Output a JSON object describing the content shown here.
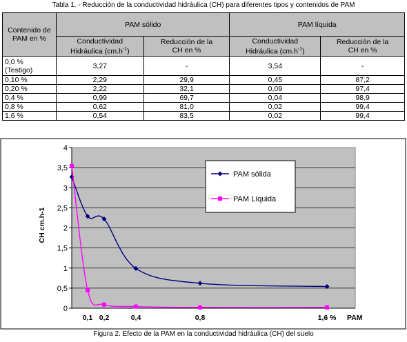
{
  "table": {
    "caption": "Tabla 1. - Reducción de la conductividad hidráulica (CH) para diferentes tipos y contenidos de PAM",
    "rowheader_line1": "Contenido de",
    "rowheader_line2": "PAM en %",
    "group_solid": "PAM sólido",
    "group_liquid": "PAM líquida",
    "col_ch_line1": "Conductividad",
    "col_ch_line2": "Hidráulica (cm.h",
    "col_ch_sup": "-1",
    "col_ch_close": ")",
    "col_red_line1": "Reducción de la",
    "col_red_line2": "CH en %",
    "rows": [
      {
        "label1": "0,0 %",
        "label2": "(Testigo)",
        "ch_s": "3,27",
        "red_s": "-",
        "ch_l": "3,54",
        "red_l": "-"
      },
      {
        "label1": "0,10 %",
        "label2": "",
        "ch_s": "2,29",
        "red_s": "29,9",
        "ch_l": "0,45",
        "red_l": "87,2"
      },
      {
        "label1": "0,20 %",
        "label2": "",
        "ch_s": "2,22",
        "red_s": "32,1",
        "ch_l": "0,09",
        "red_l": "97,4"
      },
      {
        "label1": "0,4 %",
        "label2": "",
        "ch_s": "0,99",
        "red_s": "69,7",
        "ch_l": "0,04",
        "red_l": "98,9"
      },
      {
        "label1": "0,8 %",
        "label2": "",
        "ch_s": "0,62",
        "red_s": "81,0",
        "ch_l": "0,02",
        "red_l": "99,4"
      },
      {
        "label1": "1,6 %",
        "label2": "",
        "ch_s": "0,54",
        "red_s": "83,5",
        "ch_l": "0,02",
        "red_l": "99,4"
      }
    ]
  },
  "chart_data": {
    "type": "line",
    "title": "",
    "xlabel": "PAM",
    "ylabel": "CH   cm.h-1",
    "x": [
      0,
      0.1,
      0.2,
      0.4,
      0.8,
      1.6
    ],
    "x_tick_labels": [
      "0,1",
      "0,2",
      "0,4",
      "0,8",
      "1,6 %"
    ],
    "y_ticks": [
      "0",
      "0,5",
      "1",
      "1,5",
      "2",
      "2,5",
      "3",
      "3,5",
      "4"
    ],
    "ylim": [
      0,
      4
    ],
    "xlim": [
      0,
      1.8
    ],
    "x_axis_scale": "compressed: 0.2 to 0.4 spans less than 0.0 to 0.2, as in the original",
    "grid": "horizontal gridlines",
    "legend_position": "upper-right inside plot",
    "plot_background": "#c0c0c0",
    "series": [
      {
        "name": "PAM sólida",
        "color": "#000080",
        "marker": "diamond",
        "values": [
          3.27,
          2.29,
          2.22,
          0.99,
          0.62,
          0.54
        ]
      },
      {
        "name": "PAM Líquida",
        "color": "#ff00ff",
        "marker": "square",
        "values": [
          3.54,
          0.45,
          0.09,
          0.04,
          0.02,
          0.02
        ]
      }
    ]
  },
  "figure_caption": "Figura 2. Efecto de la PAM en la conductividad hidráulica (CH) del suelo"
}
